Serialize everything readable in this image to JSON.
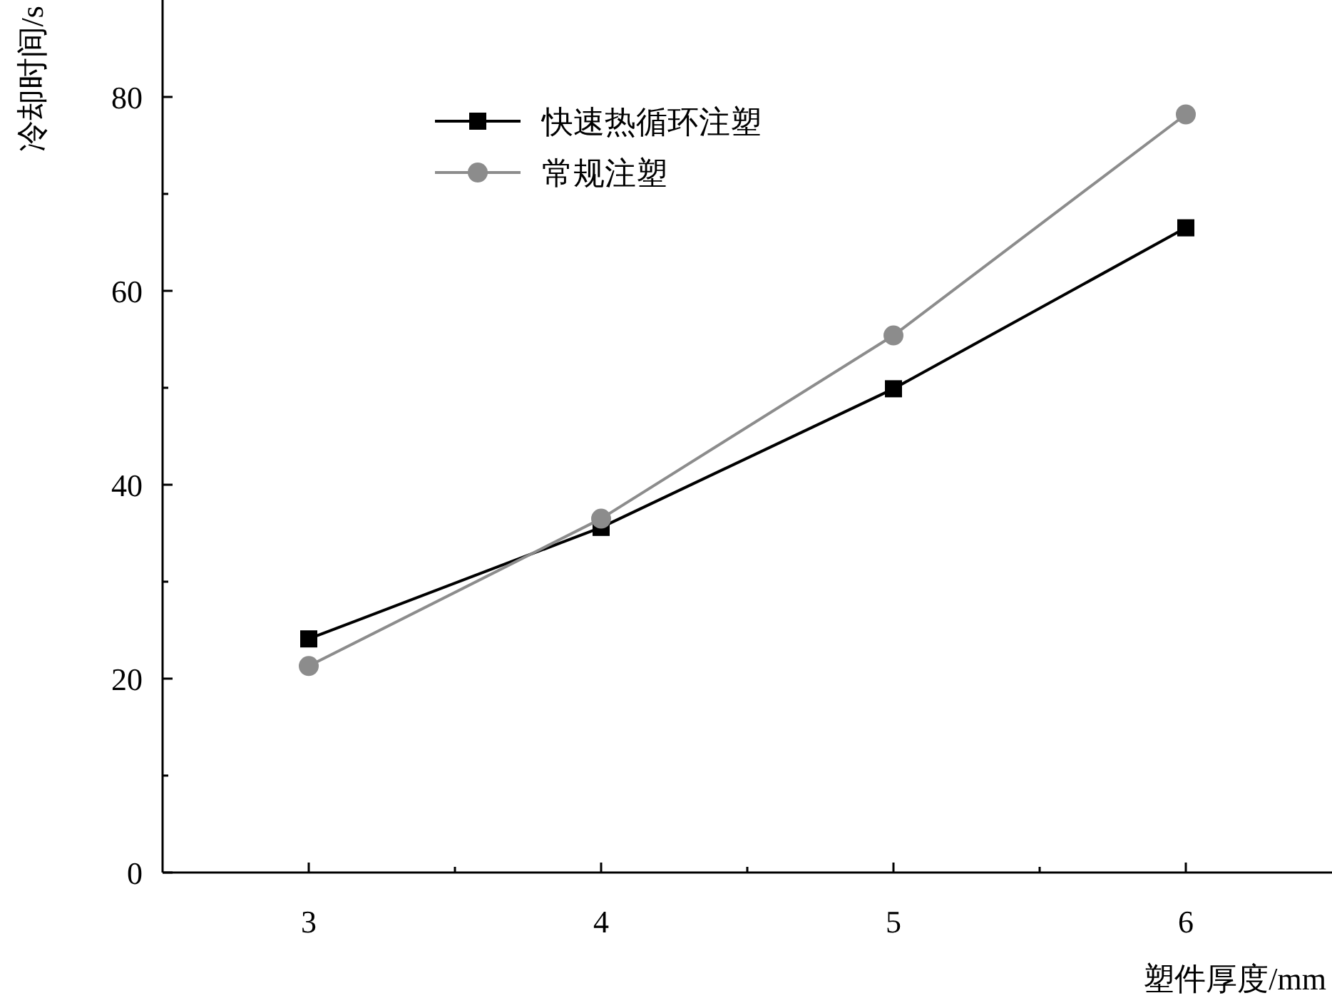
{
  "chart_data": {
    "type": "line",
    "xlabel": "塑件厚度/mm",
    "ylabel": "冷却时间/s",
    "x": [
      3,
      4,
      5,
      6
    ],
    "xlim": [
      2.5,
      6.5
    ],
    "ylim": [
      0,
      90
    ],
    "xticks": [
      3,
      {
        "value": 3.5,
        "label": null
      },
      4,
      {
        "value": 4.5,
        "label": null
      },
      5,
      {
        "value": 5.5,
        "label": null
      },
      6
    ],
    "yticks": [
      0,
      {
        "value": 10,
        "label": null
      },
      20,
      {
        "value": 30,
        "label": null
      },
      40,
      {
        "value": 50,
        "label": null
      },
      60,
      {
        "value": 70,
        "label": null
      },
      80
    ],
    "legend": "top left",
    "grid": false,
    "line_style": "solid",
    "series": [
      {
        "name": "快速热循环注塑",
        "color": "#000000",
        "marker": "square",
        "values": [
          24.1,
          35.6,
          49.9,
          66.5
        ]
      },
      {
        "name": "常规注塑",
        "color": "#8c8c8c",
        "marker": "circle",
        "values": [
          21.3,
          36.5,
          55.4,
          78.2
        ]
      }
    ]
  }
}
